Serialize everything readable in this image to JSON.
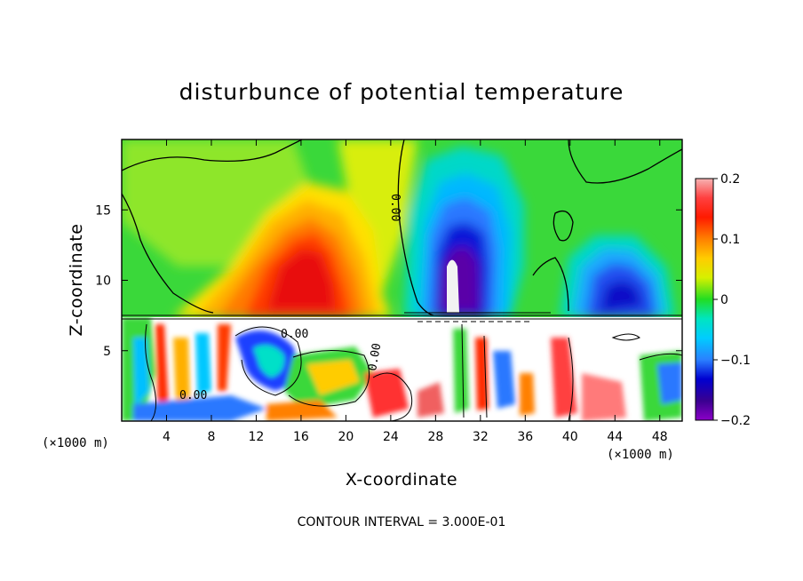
{
  "chart_data": {
    "type": "heatmap",
    "title": "disturbunce of potential temperature",
    "xlabel": "X-coordinate",
    "ylabel": "Z-coordinate",
    "x_unit": "(×1000 m)",
    "y_unit": "(×1000 m)",
    "xlim": [
      0,
      50
    ],
    "ylim": [
      0,
      20
    ],
    "x_ticks": [
      4,
      8,
      12,
      16,
      20,
      24,
      28,
      32,
      36,
      40,
      44,
      48
    ],
    "y_ticks": [
      5,
      10,
      15
    ],
    "colorbar": {
      "range": [
        -0.2,
        0.2
      ],
      "tick_labels": [
        "0.2",
        "0.1",
        "0",
        "−0.1",
        "−0.2"
      ],
      "tick_values": [
        0.2,
        0.1,
        0,
        -0.1,
        -0.2
      ]
    },
    "contour_labels": [
      "0.00",
      "0.00",
      "0.00",
      "0.00"
    ],
    "footer": "CONTOUR INTERVAL = 3.000E-01",
    "field_features": [
      {
        "kind": "warm",
        "x": 17.5,
        "z": 12.5,
        "value": 0.17
      },
      {
        "kind": "cold",
        "x": 29.8,
        "z": 12.0,
        "value": -0.2
      },
      {
        "kind": "cold",
        "x": 45.0,
        "z": 9.5,
        "value": -0.16
      },
      {
        "kind": "cold",
        "x": 31.0,
        "z": 18.0,
        "value": -0.08
      }
    ]
  }
}
